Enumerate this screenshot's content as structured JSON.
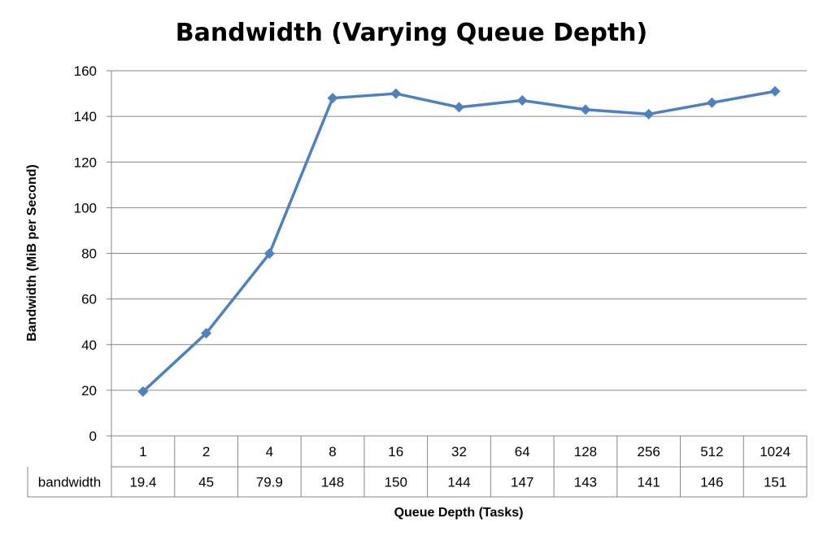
{
  "chart_data": {
    "type": "line",
    "title": "Bandwidth (Varying Queue Depth)",
    "xlabel": "Queue Depth (Tasks)",
    "ylabel": "Bandwidth (MiB per Second)",
    "categories": [
      "1",
      "2",
      "4",
      "8",
      "16",
      "32",
      "64",
      "128",
      "256",
      "512",
      "1024"
    ],
    "series": [
      {
        "name": "bandwidth",
        "values": [
          19.4,
          45,
          79.9,
          148,
          150,
          144,
          147,
          143,
          141,
          146,
          151
        ],
        "table_labels": [
          "19.4",
          "45",
          "79.9",
          "148",
          "150",
          "144",
          "147",
          "143",
          "141",
          "146",
          "151"
        ]
      }
    ],
    "ylim": [
      0,
      160
    ],
    "yticks": [
      0,
      20,
      40,
      60,
      80,
      100,
      120,
      140,
      160
    ],
    "grid": true,
    "legend": "data table below plot",
    "marker": "diamond",
    "colors": {
      "series": "#4F81BD",
      "grid": "#868686",
      "axis": "#868686"
    }
  }
}
